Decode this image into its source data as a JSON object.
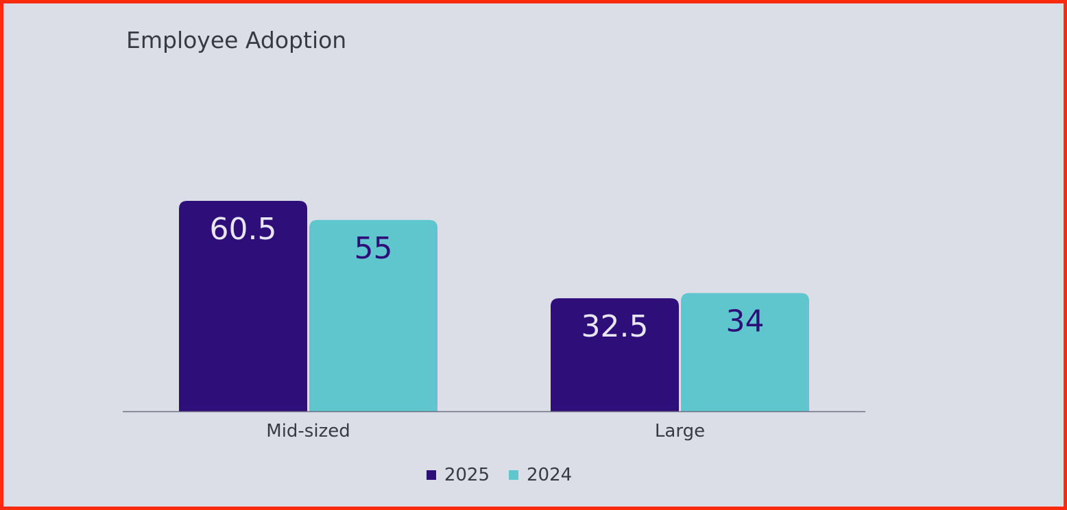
{
  "chart_data": {
    "type": "bar",
    "title": "Employee Adoption",
    "xlabel": "",
    "ylabel": "",
    "categories": [
      "Mid-sized",
      "Large"
    ],
    "series": [
      {
        "name": "2025",
        "values": [
          60.5,
          32.5
        ],
        "color": "#2e0f7a",
        "label_color": "#e8e6f2"
      },
      {
        "name": "2024",
        "values": [
          55,
          34
        ],
        "color": "#5fc6cd",
        "label_color": "#2e0f7a"
      }
    ],
    "grid": false,
    "legend": "bottom-center",
    "data_labels": true
  }
}
